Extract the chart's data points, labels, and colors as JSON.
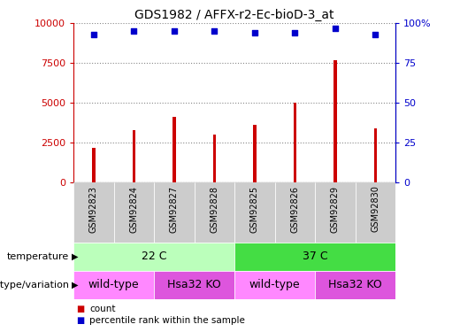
{
  "title": "GDS1982 / AFFX-r2-Ec-bioD-3_at",
  "samples": [
    "GSM92823",
    "GSM92824",
    "GSM92827",
    "GSM92828",
    "GSM92825",
    "GSM92826",
    "GSM92829",
    "GSM92830"
  ],
  "counts": [
    2200,
    3300,
    4100,
    3000,
    3600,
    5000,
    7700,
    3400
  ],
  "percentile_ranks": [
    93,
    95,
    95,
    95,
    94,
    94,
    97,
    93
  ],
  "bar_color": "#cc0000",
  "dot_color": "#0000cc",
  "ylim_left": [
    0,
    10000
  ],
  "ylim_right": [
    0,
    100
  ],
  "yticks_left": [
    0,
    2500,
    5000,
    7500,
    10000
  ],
  "ytick_labels_left": [
    "0",
    "2500",
    "5000",
    "7500",
    "10000"
  ],
  "yticks_right": [
    0,
    25,
    50,
    75,
    100
  ],
  "ytick_labels_right": [
    "0",
    "25",
    "50",
    "75",
    "100%"
  ],
  "temperature_labels": [
    {
      "label": "22 C",
      "start": 0,
      "end": 4
    },
    {
      "label": "37 C",
      "start": 4,
      "end": 8
    }
  ],
  "genotype_labels": [
    {
      "label": "wild-type",
      "start": 0,
      "end": 2
    },
    {
      "label": "Hsa32 KO",
      "start": 2,
      "end": 4
    },
    {
      "label": "wild-type",
      "start": 4,
      "end": 6
    },
    {
      "label": "Hsa32 KO",
      "start": 6,
      "end": 8
    }
  ],
  "temp_colors": [
    "#bbffbb",
    "#44dd44"
  ],
  "genotype_colors": [
    "#ff88ff",
    "#dd55dd"
  ],
  "legend_count_color": "#cc0000",
  "legend_pct_color": "#0000cc",
  "grid_color": "#888888",
  "tick_label_color_left": "#cc0000",
  "tick_label_color_right": "#0000cc",
  "sample_bg_color": "#cccccc",
  "bar_width": 0.08
}
